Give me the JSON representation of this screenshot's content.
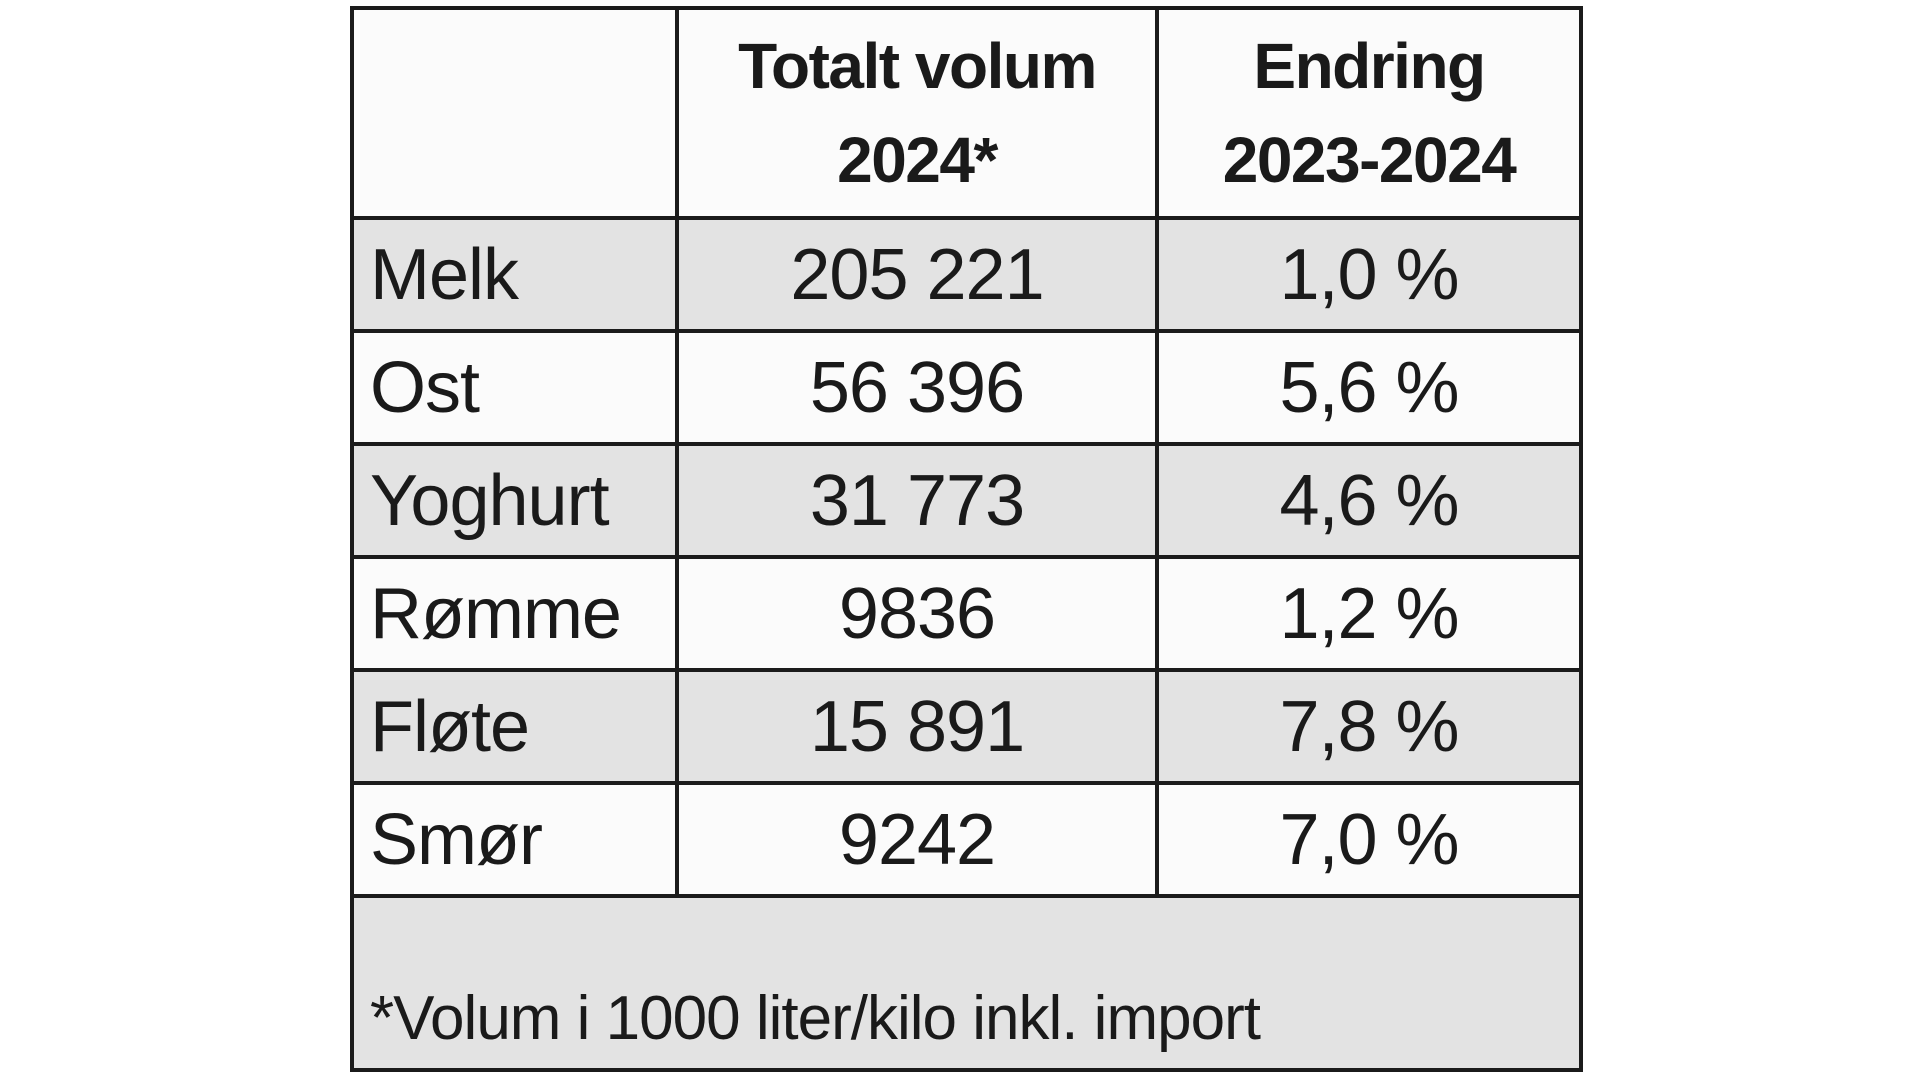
{
  "table": {
    "header": {
      "empty": "",
      "col1_line1": "Totalt volum",
      "col1_line2": "2024*",
      "col2_line1": "Endring",
      "col2_line2": "2023-2024"
    },
    "rows": [
      {
        "label": "Melk",
        "volume": "205 221",
        "change": "1,0 %"
      },
      {
        "label": "Ost",
        "volume": "56 396",
        "change": "5,6 %"
      },
      {
        "label": "Yoghurt",
        "volume": "31 773",
        "change": "4,6 %"
      },
      {
        "label": "Rømme",
        "volume": "9836",
        "change": "1,2 %"
      },
      {
        "label": "Fløte",
        "volume": "15 891",
        "change": "7,8 %"
      },
      {
        "label": "Smør",
        "volume": "9242",
        "change": "7,0 %"
      }
    ],
    "footnote": "*Volum i 1000 liter/kilo inkl. import"
  },
  "colors": {
    "stripe_gray": "#e3e3e3",
    "border": "#1b1b1b",
    "text": "#1a1a1a",
    "background": "#ffffff"
  },
  "chart_data": {
    "type": "table",
    "title": "",
    "columns": [
      "",
      "Totalt volum 2024*",
      "Endring 2023-2024"
    ],
    "categories": [
      "Melk",
      "Ost",
      "Yoghurt",
      "Rømme",
      "Fløte",
      "Smør"
    ],
    "series": [
      {
        "name": "Totalt volum 2024 (1000 liter/kilo)",
        "values": [
          205221,
          56396,
          31773,
          9836,
          15891,
          9242
        ]
      },
      {
        "name": "Endring 2023-2024 (%)",
        "values": [
          1.0,
          5.6,
          4.6,
          1.2,
          7.8,
          7.0
        ]
      }
    ],
    "footnote": "*Volum i 1000 liter/kilo inkl. import",
    "layout": {
      "striped_rows": true,
      "grid": true,
      "legend": "none"
    }
  }
}
